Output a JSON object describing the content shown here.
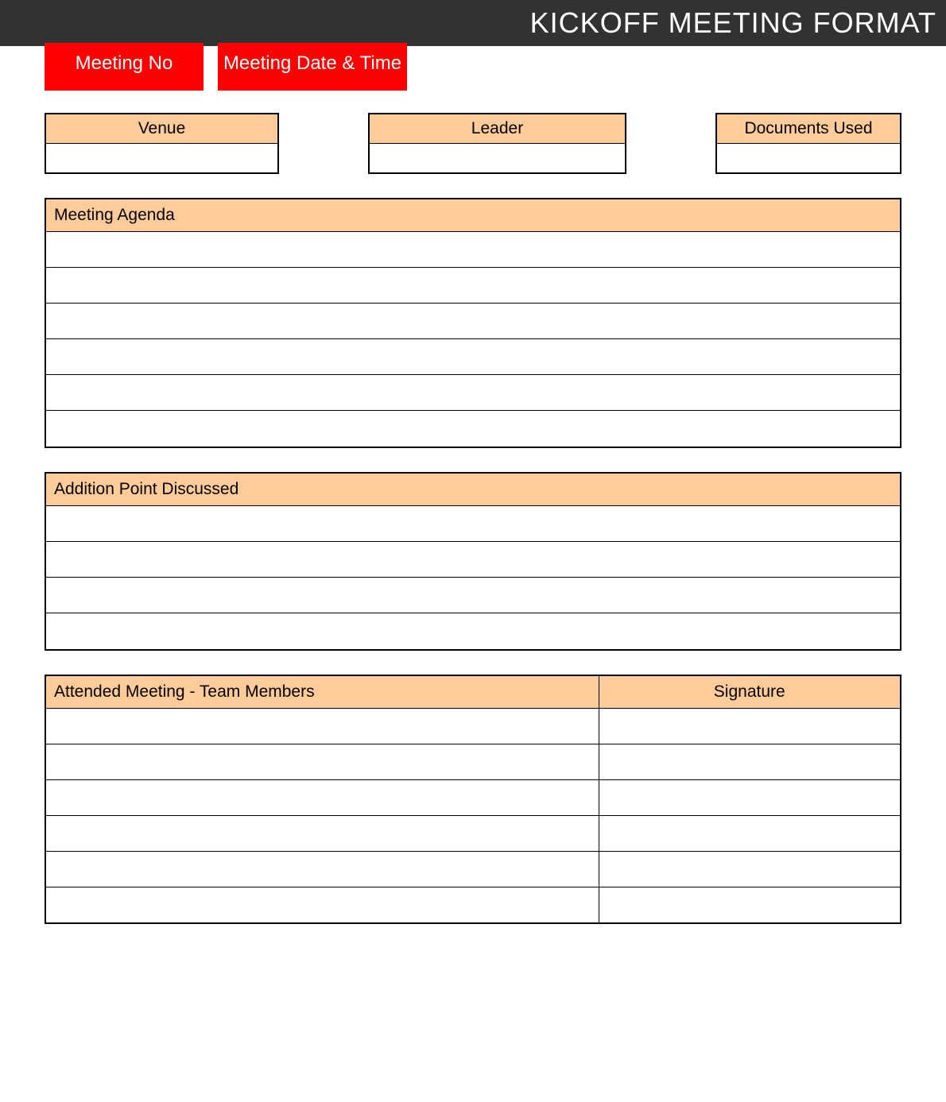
{
  "header": {
    "title": "KICKOFF MEETING FORMAT",
    "bg_color": "#323232",
    "text_color": "#ffffff",
    "fontsize": 36
  },
  "red_boxes": {
    "bg_color": "#ff0000",
    "text_color": "#ffffff",
    "fontsize": 24,
    "meeting_no_label": "Meeting No",
    "meeting_datetime_label": "Meeting Date & Time"
  },
  "info_boxes": {
    "header_bg_color": "#ffcc99",
    "border_color": "#000000",
    "fontsize": 21,
    "venue_label": "Venue",
    "venue_value": "",
    "leader_label": "Leader",
    "leader_value": "",
    "documents_label": "Documents Used",
    "documents_value": ""
  },
  "agenda": {
    "title": "Meeting Agenda",
    "header_bg_color": "#ffcc99",
    "row_count": 6,
    "rows": [
      "",
      "",
      "",
      "",
      "",
      ""
    ]
  },
  "additional": {
    "title": "Addition Point Discussed",
    "header_bg_color": "#ffcc99",
    "row_count": 4,
    "rows": [
      "",
      "",
      "",
      ""
    ]
  },
  "attendance": {
    "header_bg_color": "#ffcc99",
    "members_label": "Attended Meeting - Team Members",
    "signature_label": "Signature",
    "row_count": 6,
    "rows": [
      {
        "member": "",
        "signature": ""
      },
      {
        "member": "",
        "signature": ""
      },
      {
        "member": "",
        "signature": ""
      },
      {
        "member": "",
        "signature": ""
      },
      {
        "member": "",
        "signature": ""
      },
      {
        "member": "",
        "signature": ""
      }
    ]
  }
}
